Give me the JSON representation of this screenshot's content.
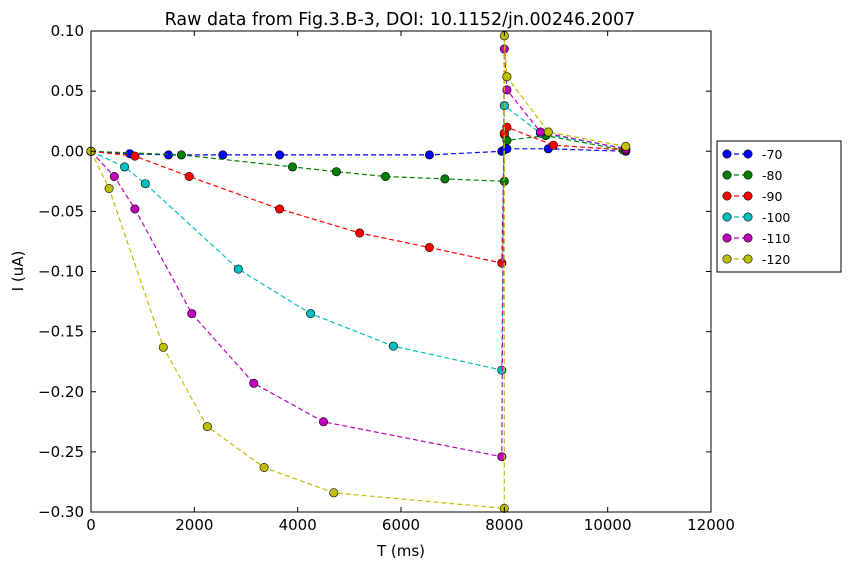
{
  "chart_data": {
    "type": "line",
    "title": "Raw data from Fig.3.B-3, DOI: 10.1152/jn.00246.2007",
    "xlabel": "T (ms)",
    "ylabel": "I (uA)",
    "xlim": [
      0,
      12000
    ],
    "ylim": [
      -0.3,
      0.1
    ],
    "x_ticks": [
      0,
      2000,
      4000,
      6000,
      8000,
      10000,
      12000
    ],
    "x_tick_labels": [
      "0",
      "2000",
      "4000",
      "6000",
      "8000",
      "10000",
      "12000"
    ],
    "y_ticks": [
      -0.3,
      -0.25,
      -0.2,
      -0.15,
      -0.1,
      -0.05,
      0.0,
      0.05,
      0.1
    ],
    "y_tick_labels": [
      "−0.30",
      "−0.25",
      "−0.20",
      "−0.15",
      "−0.10",
      "−0.05",
      "0.00",
      "0.05",
      "0.10"
    ],
    "grid": false,
    "legend_position": "right-outside",
    "line_style": "dashed with circle markers",
    "series": [
      {
        "name": "-70",
        "color": "#0000ff",
        "x": [
          0,
          750,
          1500,
          2550,
          3650,
          6550,
          7950,
          8000,
          8050,
          8850,
          10350
        ],
        "y": [
          0.0,
          -0.002,
          -0.003,
          -0.003,
          -0.003,
          -0.003,
          0.0,
          0.001,
          0.002,
          0.002,
          0.0
        ]
      },
      {
        "name": "-80",
        "color": "#008000",
        "x": [
          0,
          1750,
          3900,
          4750,
          5700,
          6850,
          8000,
          8000,
          8050,
          8800,
          10300
        ],
        "y": [
          0.0,
          -0.003,
          -0.013,
          -0.017,
          -0.021,
          -0.023,
          -0.025,
          0.014,
          0.009,
          0.013,
          0.001
        ]
      },
      {
        "name": "-90",
        "color": "#ff0000",
        "x": [
          0,
          850,
          1900,
          3650,
          5200,
          6550,
          7950,
          8000,
          8050,
          8950,
          10350
        ],
        "y": [
          0.0,
          -0.004,
          -0.021,
          -0.048,
          -0.068,
          -0.08,
          -0.093,
          0.015,
          0.02,
          0.005,
          0.001
        ]
      },
      {
        "name": "-100",
        "color": "#00bfbf",
        "x": [
          0,
          650,
          1050,
          2850,
          4250,
          5850,
          7950,
          8000,
          8700,
          10350
        ],
        "y": [
          0.0,
          -0.013,
          -0.027,
          -0.098,
          -0.135,
          -0.162,
          -0.182,
          0.038,
          0.015,
          0.002
        ]
      },
      {
        "name": "-110",
        "color": "#bf00bf",
        "x": [
          0,
          450,
          850,
          1950,
          3150,
          4500,
          7950,
          8000,
          8050,
          8700,
          10350
        ],
        "y": [
          0.0,
          -0.021,
          -0.048,
          -0.135,
          -0.193,
          -0.225,
          -0.254,
          0.085,
          0.051,
          0.016,
          0.002
        ]
      },
      {
        "name": "-120",
        "color": "#bfbf00",
        "x": [
          0,
          350,
          1400,
          2250,
          3350,
          4700,
          8000,
          8000,
          8050,
          8850,
          10350
        ],
        "y": [
          0.0,
          -0.031,
          -0.163,
          -0.229,
          -0.263,
          -0.284,
          -0.297,
          0.096,
          0.062,
          0.016,
          0.004
        ]
      }
    ]
  }
}
